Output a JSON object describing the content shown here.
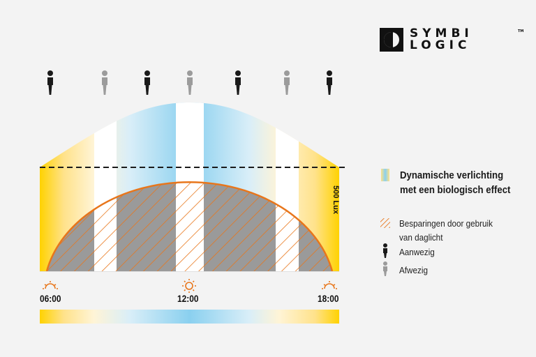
{
  "brand": {
    "name_line1": "SYMBI",
    "name_line2": "LOGIC",
    "trademark": "TM"
  },
  "legend": {
    "dynamic_title_line1": "Dynamische verlichting",
    "dynamic_title_line2": "met een biologisch effect",
    "savings_line1": "Besparingen door gebruik",
    "savings_line2": "van daglicht",
    "present": "Aanwezig",
    "absent": "Afwezig"
  },
  "axis": {
    "threshold_label": "500 Lux",
    "times": [
      "06:00",
      "12:00",
      "18:00"
    ],
    "time_icons": [
      "sunrise-icon",
      "sun-icon",
      "sunset-icon"
    ]
  },
  "occupancy": [
    "present",
    "absent",
    "present",
    "absent",
    "present",
    "absent",
    "present"
  ],
  "colors": {
    "warm": "#ffd200",
    "cool": "#86cfef",
    "orange": "#e8761b",
    "daylight_gray": "#9a9a9a",
    "present": "#1a1a1a",
    "absent": "#9b9b9b",
    "background": "#f3f3f3"
  }
}
